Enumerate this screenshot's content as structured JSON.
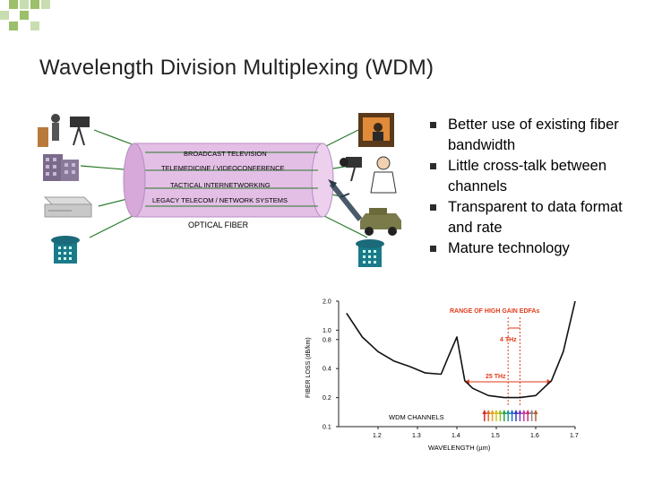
{
  "slide": {
    "title": "Wavelength Division Multiplexing (WDM)",
    "bullets": [
      "Better use of existing fiber bandwidth",
      "Little cross-talk between channels",
      "Transparent to data format and rate",
      "Mature technology"
    ]
  },
  "fiber_diagram": {
    "channels": [
      "BROADCAST TELEVISION",
      "TELEMEDICINE / VIDEOCONFERENCE",
      "TACTICAL INTERNETWORKING",
      "LEGACY TELECOM / NETWORK SYSTEMS"
    ],
    "caption": "OPTICAL FIBER",
    "colors": {
      "fiber": "#e3bfe6",
      "fiber_edge": "#b58cc0",
      "line": "#2a7a2a"
    },
    "icons_left": [
      "presenter-camera-icon",
      "building-icon",
      "server-icon",
      "telephone-icon"
    ],
    "icons_right": [
      "television-icon",
      "doctor-camera-icon",
      "missile-icon",
      "humvee-icon",
      "telephone-icon"
    ]
  },
  "chart_data": {
    "type": "line",
    "xlabel": "WAVELENGTH (µm)",
    "ylabel": "FIBER LOSS (dB/km)",
    "x_ticks": [
      "1.2",
      "1.3",
      "1.4",
      "1.5",
      "1.6",
      "1.7"
    ],
    "y_ticks": [
      "2.0",
      "1.0",
      "0.8",
      "0.4",
      "0.2",
      "0.1"
    ],
    "xlim": [
      1.1,
      1.7
    ],
    "ylim": [
      0.1,
      2.0
    ],
    "series": [
      {
        "x": [
          1.12,
          1.16,
          1.2,
          1.24,
          1.28,
          1.32,
          1.36,
          1.38,
          1.4,
          1.42,
          1.44,
          1.48,
          1.52,
          1.56,
          1.6,
          1.64,
          1.67,
          1.7
        ],
        "y": [
          1.5,
          0.85,
          0.6,
          0.48,
          0.42,
          0.36,
          0.35,
          0.55,
          0.85,
          0.3,
          0.25,
          0.21,
          0.2,
          0.2,
          0.21,
          0.3,
          0.6,
          2.0
        ]
      }
    ],
    "annotations": {
      "edfa_range": "RANGE OF HIGH GAIN EDFAs",
      "edfa_bw": "4 THz",
      "total_bw": "25 THz",
      "wdm": "WDM CHANNELS"
    },
    "wdm_channel_colors": [
      "#d42a2a",
      "#e0702a",
      "#e6a21e",
      "#d4c21a",
      "#8cc22a",
      "#2aa24a",
      "#1f9a9a",
      "#2a6ad4",
      "#3a3ac0",
      "#7a3ac0",
      "#c23ab0",
      "#d42a6a",
      "#8a8a8a",
      "#b06030"
    ],
    "colors": {
      "annotation": "#e23a1a",
      "curve": "#111111"
    }
  }
}
